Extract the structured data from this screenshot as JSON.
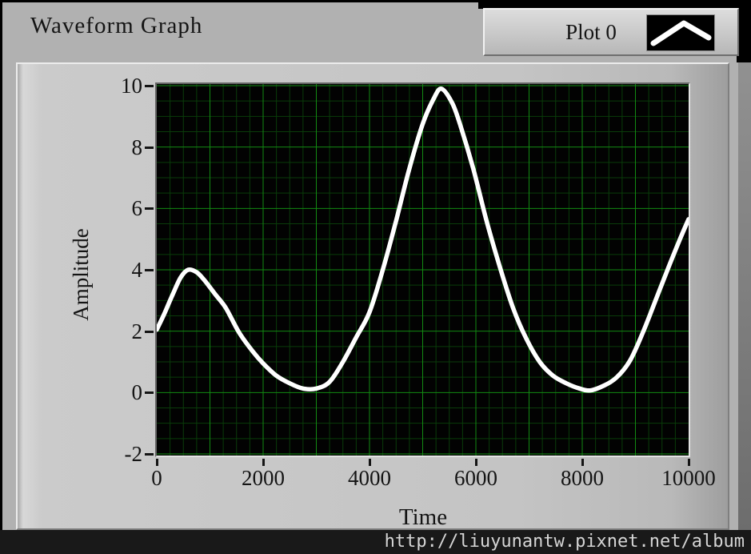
{
  "window": {
    "title": "Waveform Graph"
  },
  "legend": {
    "label": "Plot 0",
    "sample_icon": "chevron-line-icon",
    "line_color": "#ffffff"
  },
  "watermark": "http://liuyunantw.pixnet.net/album",
  "chart_data": {
    "type": "line",
    "title": "Waveform Graph",
    "xlabel": "Time",
    "ylabel": "Amplitude",
    "xlim": [
      0,
      10000
    ],
    "ylim": [
      -2,
      10
    ],
    "x_ticks": [
      0,
      2000,
      4000,
      6000,
      8000,
      10000
    ],
    "y_ticks": [
      10,
      8,
      6,
      4,
      2,
      0,
      -2
    ],
    "grid": {
      "on": true,
      "x_minor_step": 250,
      "x_major_step": 1000,
      "y_minor_step": 0.5,
      "y_major_step": 2,
      "minor_color": "#0a3c0a",
      "major_color": "#128a12"
    },
    "plot_bg": "#020202",
    "legend_position": "top-right",
    "series": [
      {
        "name": "Plot 0",
        "color": "#ffffff",
        "line_width": 5.5,
        "points": [
          [
            0,
            2.05
          ],
          [
            150,
            2.6
          ],
          [
            300,
            3.2
          ],
          [
            450,
            3.75
          ],
          [
            590,
            4.0
          ],
          [
            750,
            3.92
          ],
          [
            900,
            3.65
          ],
          [
            1100,
            3.2
          ],
          [
            1300,
            2.75
          ],
          [
            1550,
            1.95
          ],
          [
            1800,
            1.35
          ],
          [
            2000,
            0.95
          ],
          [
            2250,
            0.55
          ],
          [
            2500,
            0.3
          ],
          [
            2750,
            0.13
          ],
          [
            3000,
            0.13
          ],
          [
            3250,
            0.35
          ],
          [
            3500,
            1.0
          ],
          [
            3750,
            1.8
          ],
          [
            4000,
            2.62
          ],
          [
            4250,
            4.0
          ],
          [
            4500,
            5.6
          ],
          [
            4750,
            7.3
          ],
          [
            5000,
            8.75
          ],
          [
            5200,
            9.55
          ],
          [
            5350,
            9.9
          ],
          [
            5550,
            9.45
          ],
          [
            5700,
            8.75
          ],
          [
            5950,
            7.3
          ],
          [
            6200,
            5.6
          ],
          [
            6450,
            4.1
          ],
          [
            6700,
            2.75
          ],
          [
            6950,
            1.75
          ],
          [
            7200,
            1.0
          ],
          [
            7450,
            0.55
          ],
          [
            7700,
            0.3
          ],
          [
            7950,
            0.13
          ],
          [
            8150,
            0.07
          ],
          [
            8400,
            0.22
          ],
          [
            8650,
            0.5
          ],
          [
            8900,
            1.05
          ],
          [
            9150,
            2.0
          ],
          [
            9400,
            3.1
          ],
          [
            9650,
            4.2
          ],
          [
            9850,
            5.05
          ],
          [
            10000,
            5.65
          ]
        ]
      }
    ]
  }
}
